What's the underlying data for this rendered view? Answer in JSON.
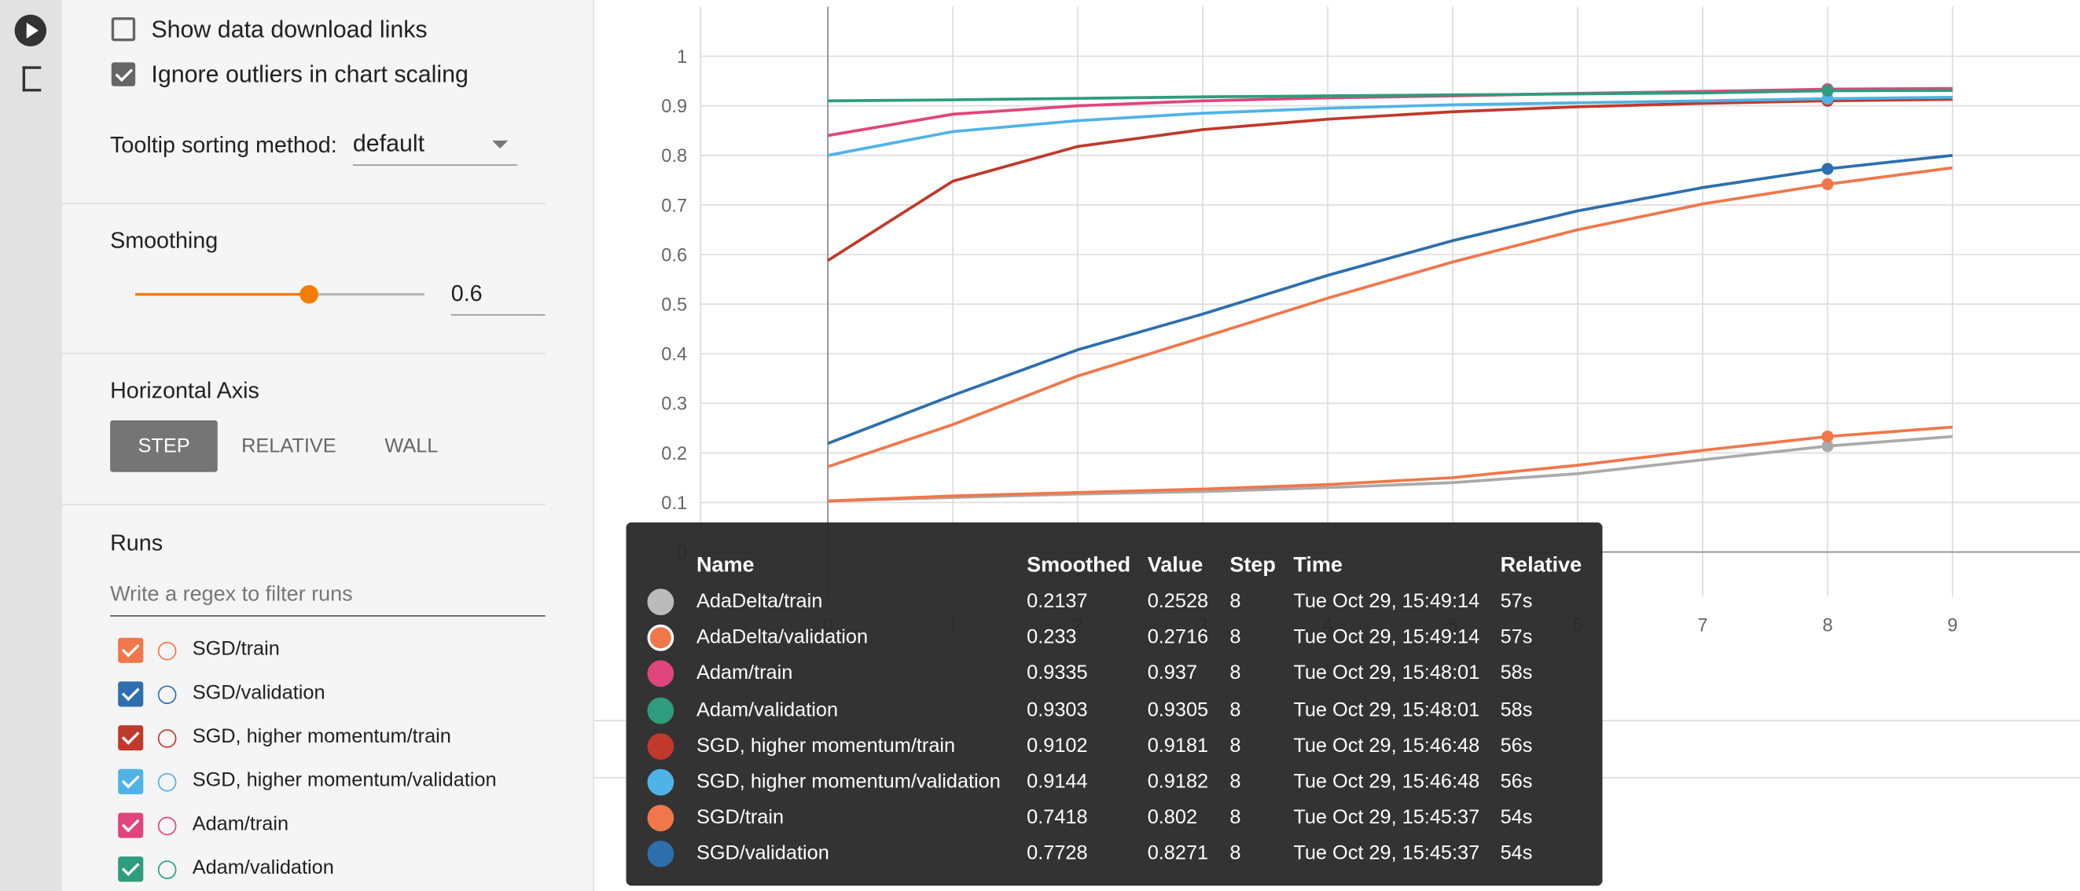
{
  "sidebar": {
    "options": [
      {
        "label": "Show data download links",
        "checked": false
      },
      {
        "label": "Ignore outliers in chart scaling",
        "checked": true
      }
    ],
    "tooltip_sorting": {
      "label": "Tooltip sorting method:",
      "value": "default"
    },
    "smoothing": {
      "label": "Smoothing",
      "value": 0.6
    },
    "horizontal_axis": {
      "label": "Horizontal Axis",
      "options": [
        "STEP",
        "RELATIVE",
        "WALL"
      ],
      "selected": "STEP"
    },
    "runs": {
      "label": "Runs",
      "filter_placeholder": "Write a regex to filter runs"
    }
  },
  "chart_data": {
    "type": "line",
    "x": [
      0,
      1,
      2,
      3,
      4,
      5,
      6,
      7,
      8,
      9
    ],
    "xlim": [
      -1.02,
      10.02
    ],
    "xticks": [
      0,
      1,
      2,
      3,
      4,
      5,
      6,
      7,
      8,
      9
    ],
    "ylim": [
      -0.09,
      1.1
    ],
    "yticks": [
      0,
      0.1,
      0.2,
      0.3,
      0.4,
      0.5,
      0.6,
      0.7,
      0.8,
      0.9,
      1
    ],
    "grid": true,
    "series": [
      {
        "name": "SGD/train",
        "color": "#f0774a",
        "values": [
          0.172,
          0.257,
          0.355,
          0.433,
          0.512,
          0.585,
          0.65,
          0.702,
          0.7418,
          0.775
        ]
      },
      {
        "name": "SGD/validation",
        "color": "#2d6fae",
        "values": [
          0.219,
          0.316,
          0.408,
          0.48,
          0.558,
          0.628,
          0.688,
          0.735,
          0.7728,
          0.8
        ]
      },
      {
        "name": "SGD, higher momentum/train",
        "color": "#c0392b",
        "values": [
          0.588,
          0.748,
          0.818,
          0.852,
          0.873,
          0.888,
          0.898,
          0.905,
          0.9102,
          0.913
        ]
      },
      {
        "name": "SGD, higher momentum/validation",
        "color": "#4fb3e8",
        "values": [
          0.8,
          0.848,
          0.87,
          0.885,
          0.895,
          0.902,
          0.906,
          0.91,
          0.9144,
          0.917
        ]
      },
      {
        "name": "Adam/train",
        "color": "#e0457b",
        "values": [
          0.84,
          0.883,
          0.9,
          0.91,
          0.916,
          0.92,
          0.925,
          0.929,
          0.9335,
          0.935
        ]
      },
      {
        "name": "Adam/validation",
        "color": "#2e9c7d",
        "values": [
          0.91,
          0.912,
          0.915,
          0.918,
          0.92,
          0.922,
          0.924,
          0.926,
          0.9303,
          0.931
        ]
      },
      {
        "name": "AdaDelta/train",
        "color": "#aaaaaa",
        "values": [
          0.103,
          0.11,
          0.117,
          0.122,
          0.13,
          0.14,
          0.158,
          0.186,
          0.2137,
          0.233
        ]
      },
      {
        "name": "AdaDelta/validation",
        "color": "#f0774a",
        "values": [
          0.103,
          0.113,
          0.12,
          0.127,
          0.136,
          0.15,
          0.175,
          0.205,
          0.233,
          0.252
        ]
      }
    ]
  },
  "tooltip": {
    "columns": [
      "Name",
      "Smoothed",
      "Value",
      "Step",
      "Time",
      "Relative"
    ],
    "rows": [
      {
        "color": "#bbbbbb",
        "name": "AdaDelta/train",
        "smoothed": 0.2137,
        "value": 0.2528,
        "step": 8,
        "time": "Tue Oct 29, 15:49:14",
        "relative": "57s"
      },
      {
        "color": "#f0774a",
        "name": "AdaDelta/validation",
        "smoothed": 0.233,
        "value": 0.2716,
        "step": 8,
        "time": "Tue Oct 29, 15:49:14",
        "relative": "57s"
      },
      {
        "color": "#e0457b",
        "name": "Adam/train",
        "smoothed": 0.9335,
        "value": 0.937,
        "step": 8,
        "time": "Tue Oct 29, 15:48:01",
        "relative": "58s"
      },
      {
        "color": "#2e9c7d",
        "name": "Adam/validation",
        "smoothed": 0.9303,
        "value": 0.9305,
        "step": 8,
        "time": "Tue Oct 29, 15:48:01",
        "relative": "58s"
      },
      {
        "color": "#c0392b",
        "name": "SGD, higher momentum/train",
        "smoothed": 0.9102,
        "value": 0.9181,
        "step": 8,
        "time": "Tue Oct 29, 15:46:48",
        "relative": "56s"
      },
      {
        "color": "#4fb3e8",
        "name": "SGD, higher momentum/validation",
        "smoothed": 0.9144,
        "value": 0.9182,
        "step": 8,
        "time": "Tue Oct 29, 15:46:48",
        "relative": "56s"
      },
      {
        "color": "#f0774a",
        "name": "SGD/train",
        "smoothed": 0.7418,
        "value": 0.802,
        "step": 8,
        "time": "Tue Oct 29, 15:45:37",
        "relative": "54s"
      },
      {
        "color": "#2d6fae",
        "name": "SGD/validation",
        "smoothed": 0.7728,
        "value": 0.8271,
        "step": 8,
        "time": "Tue Oct 29, 15:45:37",
        "relative": "54s"
      }
    ]
  }
}
